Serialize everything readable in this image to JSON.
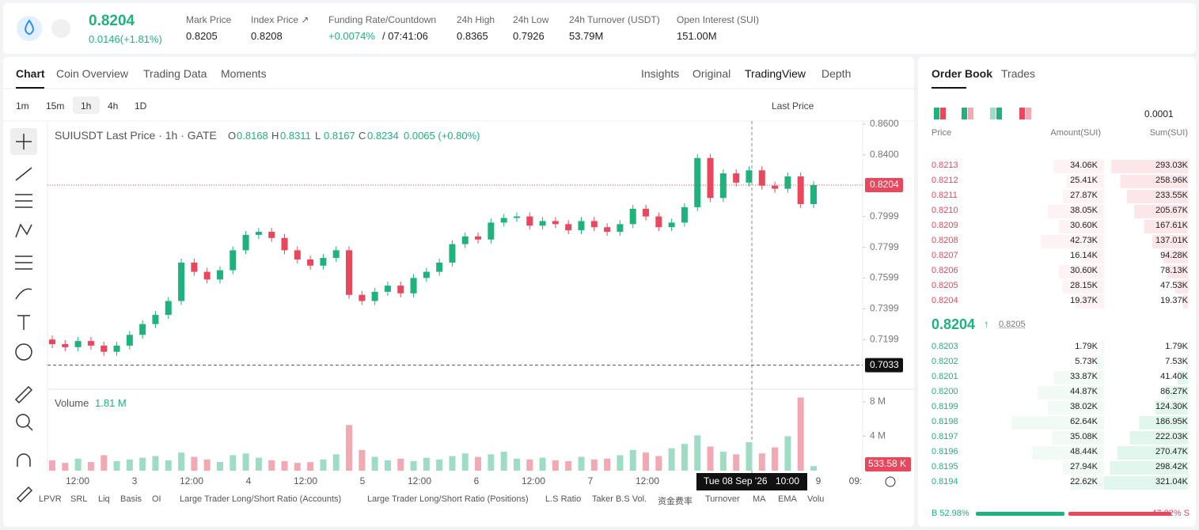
{
  "header": {
    "price": "0.8204",
    "change": "0.0146(+1.81%)",
    "stats": [
      {
        "label": "Mark Price",
        "value": "0.8205"
      },
      {
        "label": "Index Price ↗",
        "value": "0.8208"
      },
      {
        "label": "Funding Rate/Countdown",
        "value": "+0.0074%",
        "extra": "/ 07:41:06"
      },
      {
        "label": "24h High",
        "value": "0.8365"
      },
      {
        "label": "24h Low",
        "value": "0.7926"
      },
      {
        "label": "24h Turnover (USDT)",
        "value": "53.79M"
      },
      {
        "label": "Open Interest (SUI)",
        "value": "151.00M"
      }
    ]
  },
  "tabs": [
    "Chart",
    "Coin Overview",
    "Trading Data",
    "Moments"
  ],
  "views": [
    "Insights",
    "Original",
    "TradingView",
    "Depth"
  ],
  "intervals": [
    "1m",
    "15m",
    "1h",
    "4h",
    "1D"
  ],
  "price_type": "Last Price",
  "legend": {
    "title": "SUIUSDT Last Price · 1h · GATE",
    "ohlc": [
      [
        "O",
        "0.8168"
      ],
      [
        "H",
        "0.8311"
      ],
      [
        "L",
        "0.8167"
      ],
      [
        "C",
        "0.8234"
      ]
    ],
    "change": "0.0065 (+0.80%)"
  },
  "chart_data": {
    "type": "candlestick",
    "first_open": 0.72,
    "closes": [
      0.717,
      0.715,
      0.719,
      0.716,
      0.712,
      0.716,
      0.723,
      0.73,
      0.736,
      0.745,
      0.77,
      0.764,
      0.759,
      0.765,
      0.778,
      0.788,
      0.79,
      0.786,
      0.778,
      0.772,
      0.768,
      0.773,
      0.778,
      0.749,
      0.745,
      0.751,
      0.755,
      0.75,
      0.76,
      0.764,
      0.77,
      0.782,
      0.787,
      0.785,
      0.796,
      0.799,
      0.8,
      0.794,
      0.797,
      0.795,
      0.791,
      0.797,
      0.793,
      0.79,
      0.795,
      0.805,
      0.8,
      0.793,
      0.796,
      0.806,
      0.838,
      0.812,
      0.828,
      0.822,
      0.83,
      0.82,
      0.818,
      0.826,
      0.808,
      0.8204
    ],
    "volumes": [
      1.2,
      0.9,
      1.4,
      1.0,
      1.8,
      1.1,
      1.3,
      1.5,
      1.7,
      1.2,
      2.1,
      1.6,
      1.3,
      1.0,
      1.8,
      2.0,
      1.5,
      1.2,
      1.1,
      0.9,
      1.0,
      1.3,
      1.9,
      5.3,
      2.4,
      1.6,
      1.2,
      1.4,
      1.1,
      1.5,
      1.3,
      1.7,
      2.0,
      1.6,
      1.9,
      2.2,
      1.4,
      1.3,
      1.5,
      1.2,
      1.1,
      1.6,
      1.3,
      1.4,
      1.8,
      2.4,
      2.1,
      1.7,
      2.6,
      3.1,
      4.1,
      2.8,
      2.2,
      1.9,
      3.3,
      2.0,
      2.7,
      4.0,
      8.5,
      0.53
    ],
    "ylim": [
      0.6887,
      0.861
    ],
    "yticks": [
      {
        "value": 0.86,
        "label": "0.8600"
      },
      {
        "value": 0.84,
        "label": "0.8400"
      },
      {
        "value": 0.7999,
        "label": "0.7999"
      },
      {
        "value": 0.7799,
        "label": "0.7799"
      },
      {
        "value": 0.7599,
        "label": "0.7599"
      },
      {
        "value": 0.7399,
        "label": "0.7399"
      },
      {
        "value": 0.7199,
        "label": "0.7199"
      }
    ],
    "vlim": [
      0,
      9
    ],
    "vticks": [
      {
        "value": 8,
        "label": "8 M"
      },
      {
        "value": 4,
        "label": "4 M"
      }
    ],
    "last_price": {
      "value": 0.8204,
      "label": "0.8204"
    },
    "cross_price": {
      "value": 0.7033,
      "label": "0.7033"
    },
    "last_volume_label": "533.58 K",
    "volume_title": "Volume",
    "volume_value": "1.81 M",
    "xlabels": [
      "12:00",
      "3",
      "12:00",
      "4",
      "12:00",
      "5",
      "12:00",
      "6",
      "12:00",
      "7",
      "12:00",
      "9",
      "09:"
    ],
    "cross_time": "Tue 08 Sep '26",
    "cross_hour": "10:00"
  },
  "indicators": [
    "LPVR",
    "SRL",
    "Liq",
    "Basis",
    "OI",
    "Large Trader Long/Short Ratio (Accounts)",
    "Large Trader Long/Short Ratio (Positions)",
    "L.S Ratio",
    "Taker B.S Vol.",
    "资金费率",
    "Turnover",
    "MA",
    "EMA",
    "Volu"
  ],
  "orderbook": {
    "tabs": [
      "Order Book",
      "Trades"
    ],
    "precision": "0.0001",
    "headers": [
      "Price",
      "Amount(SUI)",
      "Sum(SUI)"
    ],
    "asks": [
      [
        "0.8213",
        "34.06K",
        "293.03K"
      ],
      [
        "0.8212",
        "25.41K",
        "258.96K"
      ],
      [
        "0.8211",
        "27.87K",
        "233.55K"
      ],
      [
        "0.8210",
        "38.05K",
        "205.67K"
      ],
      [
        "0.8209",
        "30.60K",
        "167.61K"
      ],
      [
        "0.8208",
        "42.73K",
        "137.01K"
      ],
      [
        "0.8207",
        "16.14K",
        "94.28K"
      ],
      [
        "0.8206",
        "30.60K",
        "78.13K"
      ],
      [
        "0.8205",
        "28.15K",
        "47.53K"
      ],
      [
        "0.8204",
        "19.37K",
        "19.37K"
      ]
    ],
    "last": "0.8204",
    "mark": "0.8205",
    "bids": [
      [
        "0.8203",
        "1.79K",
        "1.79K"
      ],
      [
        "0.8202",
        "5.73K",
        "7.53K"
      ],
      [
        "0.8201",
        "33.87K",
        "41.40K"
      ],
      [
        "0.8200",
        "44.87K",
        "86.27K"
      ],
      [
        "0.8199",
        "38.02K",
        "124.30K"
      ],
      [
        "0.8198",
        "62.64K",
        "186.95K"
      ],
      [
        "0.8197",
        "35.08K",
        "222.03K"
      ],
      [
        "0.8196",
        "48.44K",
        "270.47K"
      ],
      [
        "0.8195",
        "27.94K",
        "298.42K"
      ],
      [
        "0.8194",
        "22.62K",
        "321.04K"
      ]
    ],
    "buy": "B 52.98%",
    "sell": "47.02% S"
  }
}
